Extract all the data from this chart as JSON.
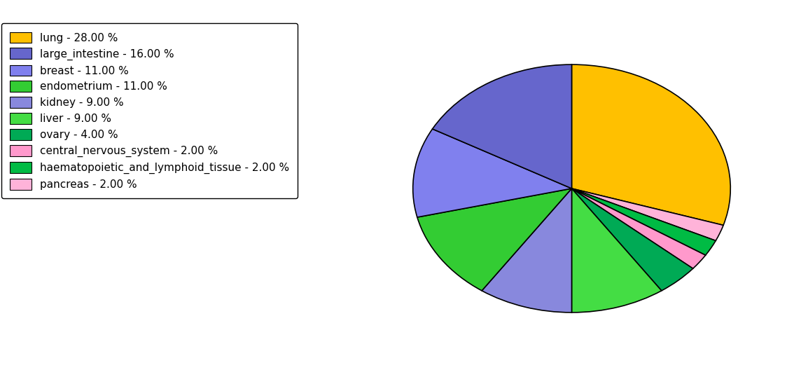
{
  "labels": [
    "lung - 28.00 %",
    "large_intestine - 16.00 %",
    "breast - 11.00 %",
    "endometrium - 11.00 %",
    "kidney - 9.00 %",
    "liver - 9.00 %",
    "ovary - 4.00 %",
    "central_nervous_system - 2.00 %",
    "haematopoietic_and_lymphoid_tissue - 2.00 %",
    "pancreas - 2.00 %"
  ],
  "values": [
    28,
    16,
    11,
    11,
    9,
    9,
    4,
    2,
    2,
    2
  ],
  "colors": [
    "#FFC000",
    "#6666CC",
    "#8080EE",
    "#33CC33",
    "#8888DD",
    "#44DD44",
    "#00AA55",
    "#FF99CC",
    "#00BB44",
    "#FFB3D9"
  ],
  "figsize": [
    11.34,
    5.38
  ],
  "dpi": 100
}
